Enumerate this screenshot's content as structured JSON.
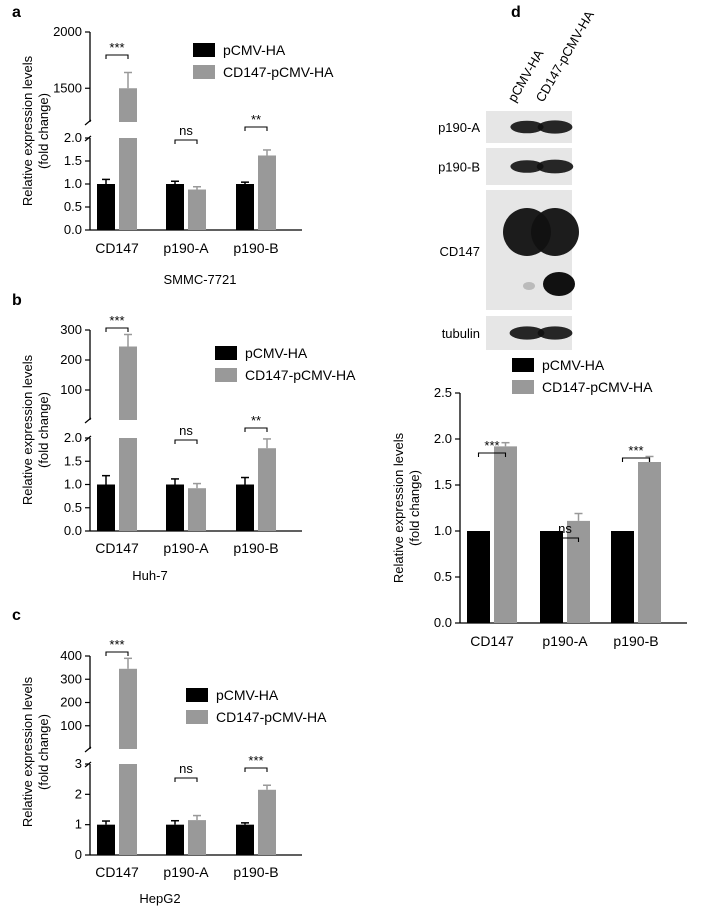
{
  "colors": {
    "control": "#000000",
    "overexpression": "#999999",
    "blot_bg": "#e6e6e6",
    "blot_band": "#111111"
  },
  "chart_data": [
    {
      "panel_label": "a",
      "type": "bar",
      "subtitle": "SMMC-7721",
      "ylabel_line1": "Relative expression levels",
      "ylabel_line2": "(fold change)",
      "axis_break": true,
      "lower_ylim": [
        0,
        2.0
      ],
      "lower_ticks": [
        "0.0",
        "0.5",
        "1.0",
        "1.5",
        "2.0"
      ],
      "upper_ylim": [
        1200,
        2000
      ],
      "upper_ticks": [
        "1500",
        "2000"
      ],
      "categories": [
        "CD147",
        "p190-A",
        "p190-B"
      ],
      "series": [
        {
          "name": "pCMV-HA",
          "color": "#000000",
          "values": [
            1.0,
            1.0,
            1.0
          ],
          "errors": [
            0.1,
            0.06,
            0.04
          ]
        },
        {
          "name": "CD147-pCMV-HA",
          "color": "#999999",
          "values": [
            1500,
            0.88,
            1.62
          ],
          "errors": [
            140,
            0.06,
            0.12
          ]
        }
      ],
      "significance": [
        "***",
        "ns",
        "**"
      ],
      "legend_position": "top-right"
    },
    {
      "panel_label": "b",
      "type": "bar",
      "subtitle": "Huh-7",
      "ylabel_line1": "Relative expression levels",
      "ylabel_line2": "(fold change)",
      "axis_break": true,
      "lower_ylim": [
        0,
        2.0
      ],
      "lower_ticks": [
        "0.0",
        "0.5",
        "1.0",
        "1.5",
        "2.0"
      ],
      "upper_ylim": [
        0,
        300
      ],
      "upper_ticks": [
        "100",
        "200",
        "300"
      ],
      "categories": [
        "CD147",
        "p190-A",
        "p190-B"
      ],
      "series": [
        {
          "name": "pCMV-HA",
          "color": "#000000",
          "values": [
            1.0,
            1.0,
            1.0
          ],
          "errors": [
            0.19,
            0.12,
            0.15
          ]
        },
        {
          "name": "CD147-pCMV-HA",
          "color": "#999999",
          "values": [
            245,
            0.92,
            1.78
          ],
          "errors": [
            40,
            0.1,
            0.2
          ]
        }
      ],
      "significance": [
        "***",
        "ns",
        "**"
      ],
      "legend_position": "top-right"
    },
    {
      "panel_label": "c",
      "type": "bar",
      "subtitle": "HepG2",
      "ylabel_line1": "Relative expression levels",
      "ylabel_line2": "(fold change)",
      "axis_break": true,
      "lower_ylim": [
        0,
        3
      ],
      "lower_ticks": [
        "0",
        "1",
        "2",
        "3"
      ],
      "upper_ylim": [
        0,
        400
      ],
      "upper_ticks": [
        "100",
        "200",
        "300",
        "400"
      ],
      "categories": [
        "CD147",
        "p190-A",
        "p190-B"
      ],
      "series": [
        {
          "name": "pCMV-HA",
          "color": "#000000",
          "values": [
            1.0,
            1.0,
            1.0
          ],
          "errors": [
            0.12,
            0.13,
            0.06
          ]
        },
        {
          "name": "CD147-pCMV-HA",
          "color": "#999999",
          "values": [
            345,
            1.15,
            2.15
          ],
          "errors": [
            45,
            0.15,
            0.15
          ]
        }
      ],
      "significance": [
        "***",
        "ns",
        "***"
      ],
      "legend_position": "top-right"
    },
    {
      "panel_label": "d",
      "type": "bar",
      "subtitle": "",
      "ylabel_line1": "Relative expression levels",
      "ylabel_line2": "(fold change)",
      "axis_break": false,
      "ylim": [
        0,
        2.5
      ],
      "ticks": [
        "0.0",
        "0.5",
        "1.0",
        "1.5",
        "2.0",
        "2.5"
      ],
      "categories": [
        "CD147",
        "p190-A",
        "p190-B"
      ],
      "series": [
        {
          "name": "pCMV-HA",
          "color": "#000000",
          "values": [
            1.0,
            1.0,
            1.0
          ],
          "errors": [
            0,
            0,
            0
          ]
        },
        {
          "name": "CD147-pCMV-HA",
          "color": "#999999",
          "values": [
            1.92,
            1.11,
            1.75
          ],
          "errors": [
            0.04,
            0.08,
            0.06
          ]
        }
      ],
      "significance": [
        "***",
        "ns",
        "***"
      ],
      "legend_position": "top-right"
    }
  ],
  "western_blot": {
    "lanes": [
      "pCMV-HA",
      "CD147-pCMV-HA"
    ],
    "rows": [
      {
        "label": "p190-A",
        "bands": [
          0.8,
          0.85
        ]
      },
      {
        "label": "p190-B",
        "bands": [
          0.8,
          0.9
        ]
      },
      {
        "label": "CD147",
        "bands": [
          1.0,
          1.0
        ]
      },
      {
        "label": "tubulin",
        "bands": [
          0.85,
          0.85
        ]
      }
    ]
  }
}
